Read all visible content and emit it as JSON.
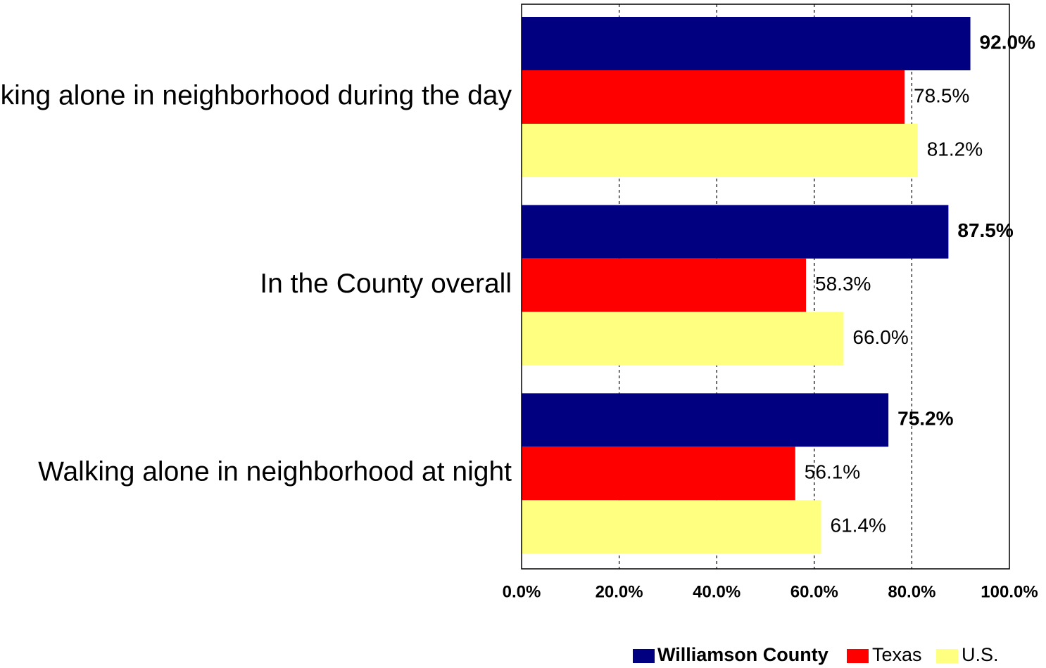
{
  "chart_data": {
    "type": "bar",
    "orientation": "horizontal",
    "categories": [
      "Walking alone in neighborhood during the day",
      "In the County overall",
      "Walking alone in neighborhood at night"
    ],
    "series": [
      {
        "name": "Williamson County",
        "color": "#000080",
        "values": [
          92.0,
          87.5,
          75.2
        ],
        "labels": [
          "92.0%",
          "87.5%",
          "75.2%"
        ],
        "label_bold": true
      },
      {
        "name": "Texas",
        "color": "#FF0000",
        "values": [
          78.5,
          58.3,
          56.1
        ],
        "labels": [
          "78.5%",
          "58.3%",
          "56.1%"
        ],
        "label_bold": false
      },
      {
        "name": "U.S.",
        "color": "#FFFF80",
        "values": [
          81.2,
          66.0,
          61.4
        ],
        "labels": [
          "81.2%",
          "66.0%",
          "61.4%"
        ],
        "label_bold": false
      }
    ],
    "xlim": [
      0,
      100
    ],
    "xticks": [
      0,
      20,
      40,
      60,
      80,
      100
    ],
    "xtick_labels": [
      "0.0%",
      "20.0%",
      "40.0%",
      "60.0%",
      "80.0%",
      "100.0%"
    ],
    "grid": "vertical dashed",
    "legend_position": "bottom-right"
  }
}
